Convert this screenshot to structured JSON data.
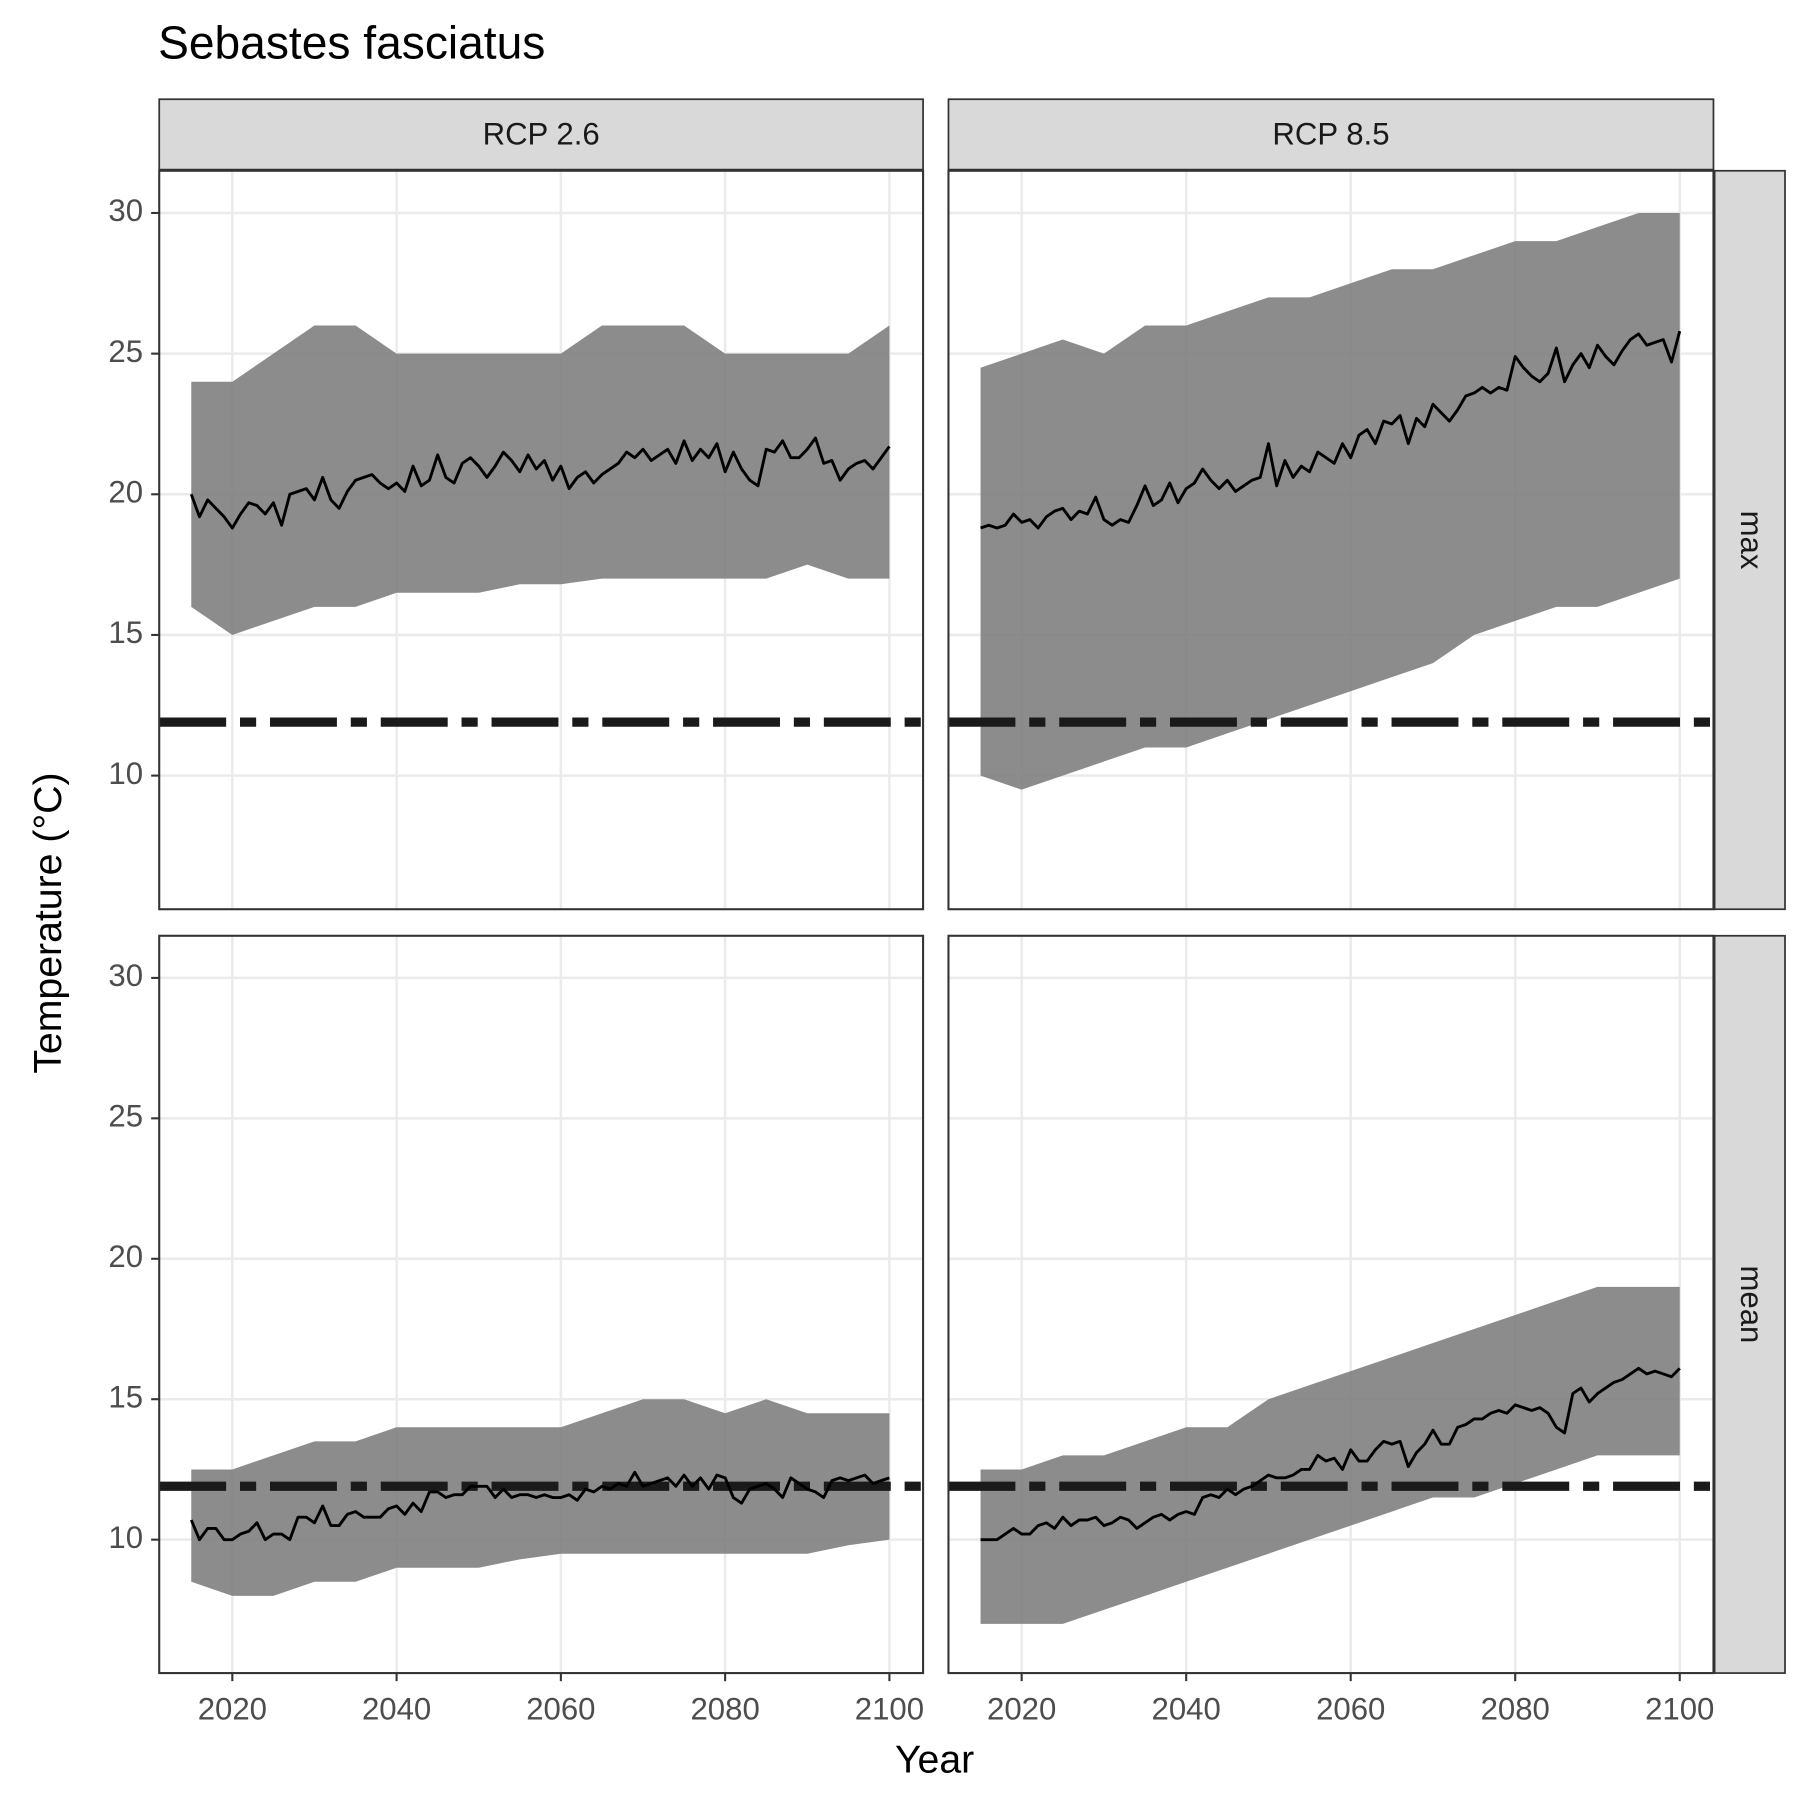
{
  "chart_data": {
    "type": "line",
    "title": "Sebastes fasciatus",
    "x_label": "Year",
    "y_label": "Temperature (°C)",
    "columns": [
      "RCP 2.6",
      "RCP 8.5"
    ],
    "rows": [
      "max",
      "mean"
    ],
    "xlim": [
      2011.1,
      2104.1
    ],
    "ylim": [
      5.25,
      31.5
    ],
    "xticks": [
      2020,
      2040,
      2060,
      2080,
      2100
    ],
    "yticks": [
      10,
      15,
      20,
      25,
      30
    ],
    "grid": true,
    "threshold": 11.9,
    "line_color": "#000000",
    "band_color": "#808080",
    "threshold_color": "#1a1a1a",
    "x": [
      2015,
      2016,
      2017,
      2018,
      2019,
      2020,
      2021,
      2022,
      2023,
      2024,
      2025,
      2026,
      2027,
      2028,
      2029,
      2030,
      2031,
      2032,
      2033,
      2034,
      2035,
      2036,
      2037,
      2038,
      2039,
      2040,
      2041,
      2042,
      2043,
      2044,
      2045,
      2046,
      2047,
      2048,
      2049,
      2050,
      2051,
      2052,
      2053,
      2054,
      2055,
      2056,
      2057,
      2058,
      2059,
      2060,
      2061,
      2062,
      2063,
      2064,
      2065,
      2066,
      2067,
      2068,
      2069,
      2070,
      2071,
      2072,
      2073,
      2074,
      2075,
      2076,
      2077,
      2078,
      2079,
      2080,
      2081,
      2082,
      2083,
      2084,
      2085,
      2086,
      2087,
      2088,
      2089,
      2090,
      2091,
      2092,
      2093,
      2094,
      2095,
      2096,
      2097,
      2098,
      2099,
      2100
    ],
    "band_x": [
      2015,
      2020,
      2025,
      2030,
      2035,
      2040,
      2045,
      2050,
      2055,
      2060,
      2065,
      2070,
      2075,
      2080,
      2085,
      2090,
      2095,
      2100
    ],
    "panels": [
      [
        {
          "values": [
            20.0,
            19.2,
            19.8,
            19.5,
            19.2,
            18.8,
            19.3,
            19.7,
            19.6,
            19.3,
            19.7,
            18.9,
            20.0,
            20.1,
            20.2,
            19.8,
            20.6,
            19.8,
            19.5,
            20.1,
            20.5,
            20.6,
            20.7,
            20.4,
            20.2,
            20.4,
            20.1,
            21.0,
            20.3,
            20.5,
            21.4,
            20.6,
            20.4,
            21.1,
            21.3,
            21.0,
            20.6,
            21.0,
            21.5,
            21.2,
            20.8,
            21.4,
            20.9,
            21.2,
            20.5,
            21.0,
            20.2,
            20.6,
            20.8,
            20.4,
            20.7,
            20.9,
            21.1,
            21.5,
            21.3,
            21.6,
            21.2,
            21.4,
            21.6,
            21.1,
            21.9,
            21.2,
            21.6,
            21.3,
            21.8,
            20.8,
            21.5,
            20.9,
            20.5,
            20.3,
            21.6,
            21.5,
            21.9,
            21.3,
            21.3,
            21.6,
            22.0,
            21.1,
            21.2,
            20.5,
            20.9,
            21.1,
            21.2,
            20.9,
            21.3,
            21.7
          ],
          "band_low": [
            16,
            15,
            15.5,
            16,
            16,
            16.5,
            16.5,
            16.5,
            16.8,
            16.8,
            17,
            17,
            17,
            17,
            17,
            17.5,
            17,
            17
          ],
          "band_high": [
            24,
            24,
            25,
            26,
            26,
            25,
            25,
            25,
            25,
            25,
            26,
            26,
            26,
            25,
            25,
            25,
            25,
            26
          ]
        },
        {
          "values": [
            18.8,
            18.9,
            18.8,
            18.9,
            19.3,
            19.0,
            19.1,
            18.8,
            19.2,
            19.4,
            19.5,
            19.1,
            19.4,
            19.3,
            19.9,
            19.1,
            18.9,
            19.1,
            19.0,
            19.6,
            20.3,
            19.6,
            19.8,
            20.4,
            19.7,
            20.2,
            20.4,
            20.9,
            20.5,
            20.2,
            20.5,
            20.1,
            20.3,
            20.5,
            20.6,
            21.8,
            20.3,
            21.2,
            20.6,
            21.0,
            20.8,
            21.5,
            21.3,
            21.1,
            21.8,
            21.3,
            22.1,
            22.3,
            21.8,
            22.6,
            22.5,
            22.8,
            21.8,
            22.7,
            22.4,
            23.2,
            22.9,
            22.6,
            23.0,
            23.5,
            23.6,
            23.8,
            23.6,
            23.8,
            23.7,
            24.9,
            24.5,
            24.2,
            24.0,
            24.3,
            25.2,
            24.0,
            24.6,
            25.0,
            24.5,
            25.3,
            24.9,
            24.6,
            25.1,
            25.5,
            25.7,
            25.3,
            25.4,
            25.5,
            24.7,
            25.8
          ],
          "band_low": [
            10,
            9.5,
            10,
            10.5,
            11,
            11,
            11.5,
            12,
            12.5,
            13,
            13.5,
            14,
            15,
            15.5,
            16,
            16,
            16.5,
            17
          ],
          "band_high": [
            24.5,
            25,
            25.5,
            25,
            26,
            26,
            26.5,
            27,
            27,
            27.5,
            28,
            28,
            28.5,
            29,
            29,
            29.5,
            30,
            30
          ]
        }
      ],
      [
        {
          "values": [
            10.7,
            10.0,
            10.4,
            10.4,
            10.0,
            10.0,
            10.2,
            10.3,
            10.6,
            10.0,
            10.2,
            10.2,
            10.0,
            10.8,
            10.8,
            10.6,
            11.2,
            10.5,
            10.5,
            10.9,
            11.0,
            10.8,
            10.8,
            10.8,
            11.1,
            11.2,
            10.9,
            11.3,
            11.0,
            11.7,
            11.7,
            11.5,
            11.6,
            11.6,
            11.9,
            11.9,
            11.9,
            11.5,
            11.8,
            11.5,
            11.6,
            11.6,
            11.5,
            11.6,
            11.5,
            11.5,
            11.6,
            11.4,
            11.8,
            11.7,
            11.9,
            11.8,
            12.0,
            11.9,
            12.4,
            11.9,
            12.0,
            12.1,
            12.2,
            11.9,
            12.3,
            11.9,
            12.2,
            11.8,
            12.3,
            12.2,
            11.5,
            11.3,
            11.8,
            11.9,
            12.0,
            11.8,
            11.5,
            12.2,
            12.0,
            11.8,
            11.7,
            11.5,
            12.1,
            12.2,
            12.1,
            12.2,
            12.3,
            12.0,
            12.1,
            12.2
          ],
          "band_low": [
            8.5,
            8,
            8,
            8.5,
            8.5,
            9,
            9,
            9,
            9.3,
            9.5,
            9.5,
            9.5,
            9.5,
            9.5,
            9.5,
            9.5,
            9.8,
            10
          ],
          "band_high": [
            12.5,
            12.5,
            13,
            13.5,
            13.5,
            14,
            14,
            14,
            14,
            14,
            14.5,
            15,
            15,
            14.5,
            15,
            14.5,
            14.5,
            14.5
          ]
        },
        {
          "values": [
            10.0,
            10.0,
            10.0,
            10.2,
            10.4,
            10.2,
            10.2,
            10.5,
            10.6,
            10.4,
            10.8,
            10.5,
            10.7,
            10.7,
            10.8,
            10.5,
            10.6,
            10.8,
            10.7,
            10.4,
            10.6,
            10.8,
            10.9,
            10.7,
            10.9,
            11.0,
            10.9,
            11.5,
            11.6,
            11.5,
            11.8,
            11.6,
            11.8,
            11.9,
            12.1,
            12.3,
            12.2,
            12.2,
            12.3,
            12.5,
            12.5,
            13.0,
            12.8,
            12.9,
            12.5,
            13.2,
            12.8,
            12.8,
            13.2,
            13.5,
            13.4,
            13.5,
            12.6,
            13.1,
            13.4,
            13.9,
            13.4,
            13.4,
            14.0,
            14.1,
            14.3,
            14.3,
            14.5,
            14.6,
            14.5,
            14.8,
            14.7,
            14.6,
            14.7,
            14.5,
            14.0,
            13.8,
            15.2,
            15.4,
            14.9,
            15.2,
            15.4,
            15.6,
            15.7,
            15.9,
            16.1,
            15.9,
            16.0,
            15.9,
            15.8,
            16.1
          ],
          "band_low": [
            7,
            7,
            7,
            7.5,
            8,
            8.5,
            9,
            9.5,
            10,
            10.5,
            11,
            11.5,
            11.5,
            12,
            12.5,
            13,
            13,
            13
          ],
          "band_high": [
            12.5,
            12.5,
            13,
            13,
            13.5,
            14,
            14,
            15,
            15.5,
            16,
            16.5,
            17,
            17.5,
            18,
            18.5,
            19,
            19,
            19
          ]
        }
      ]
    ]
  }
}
